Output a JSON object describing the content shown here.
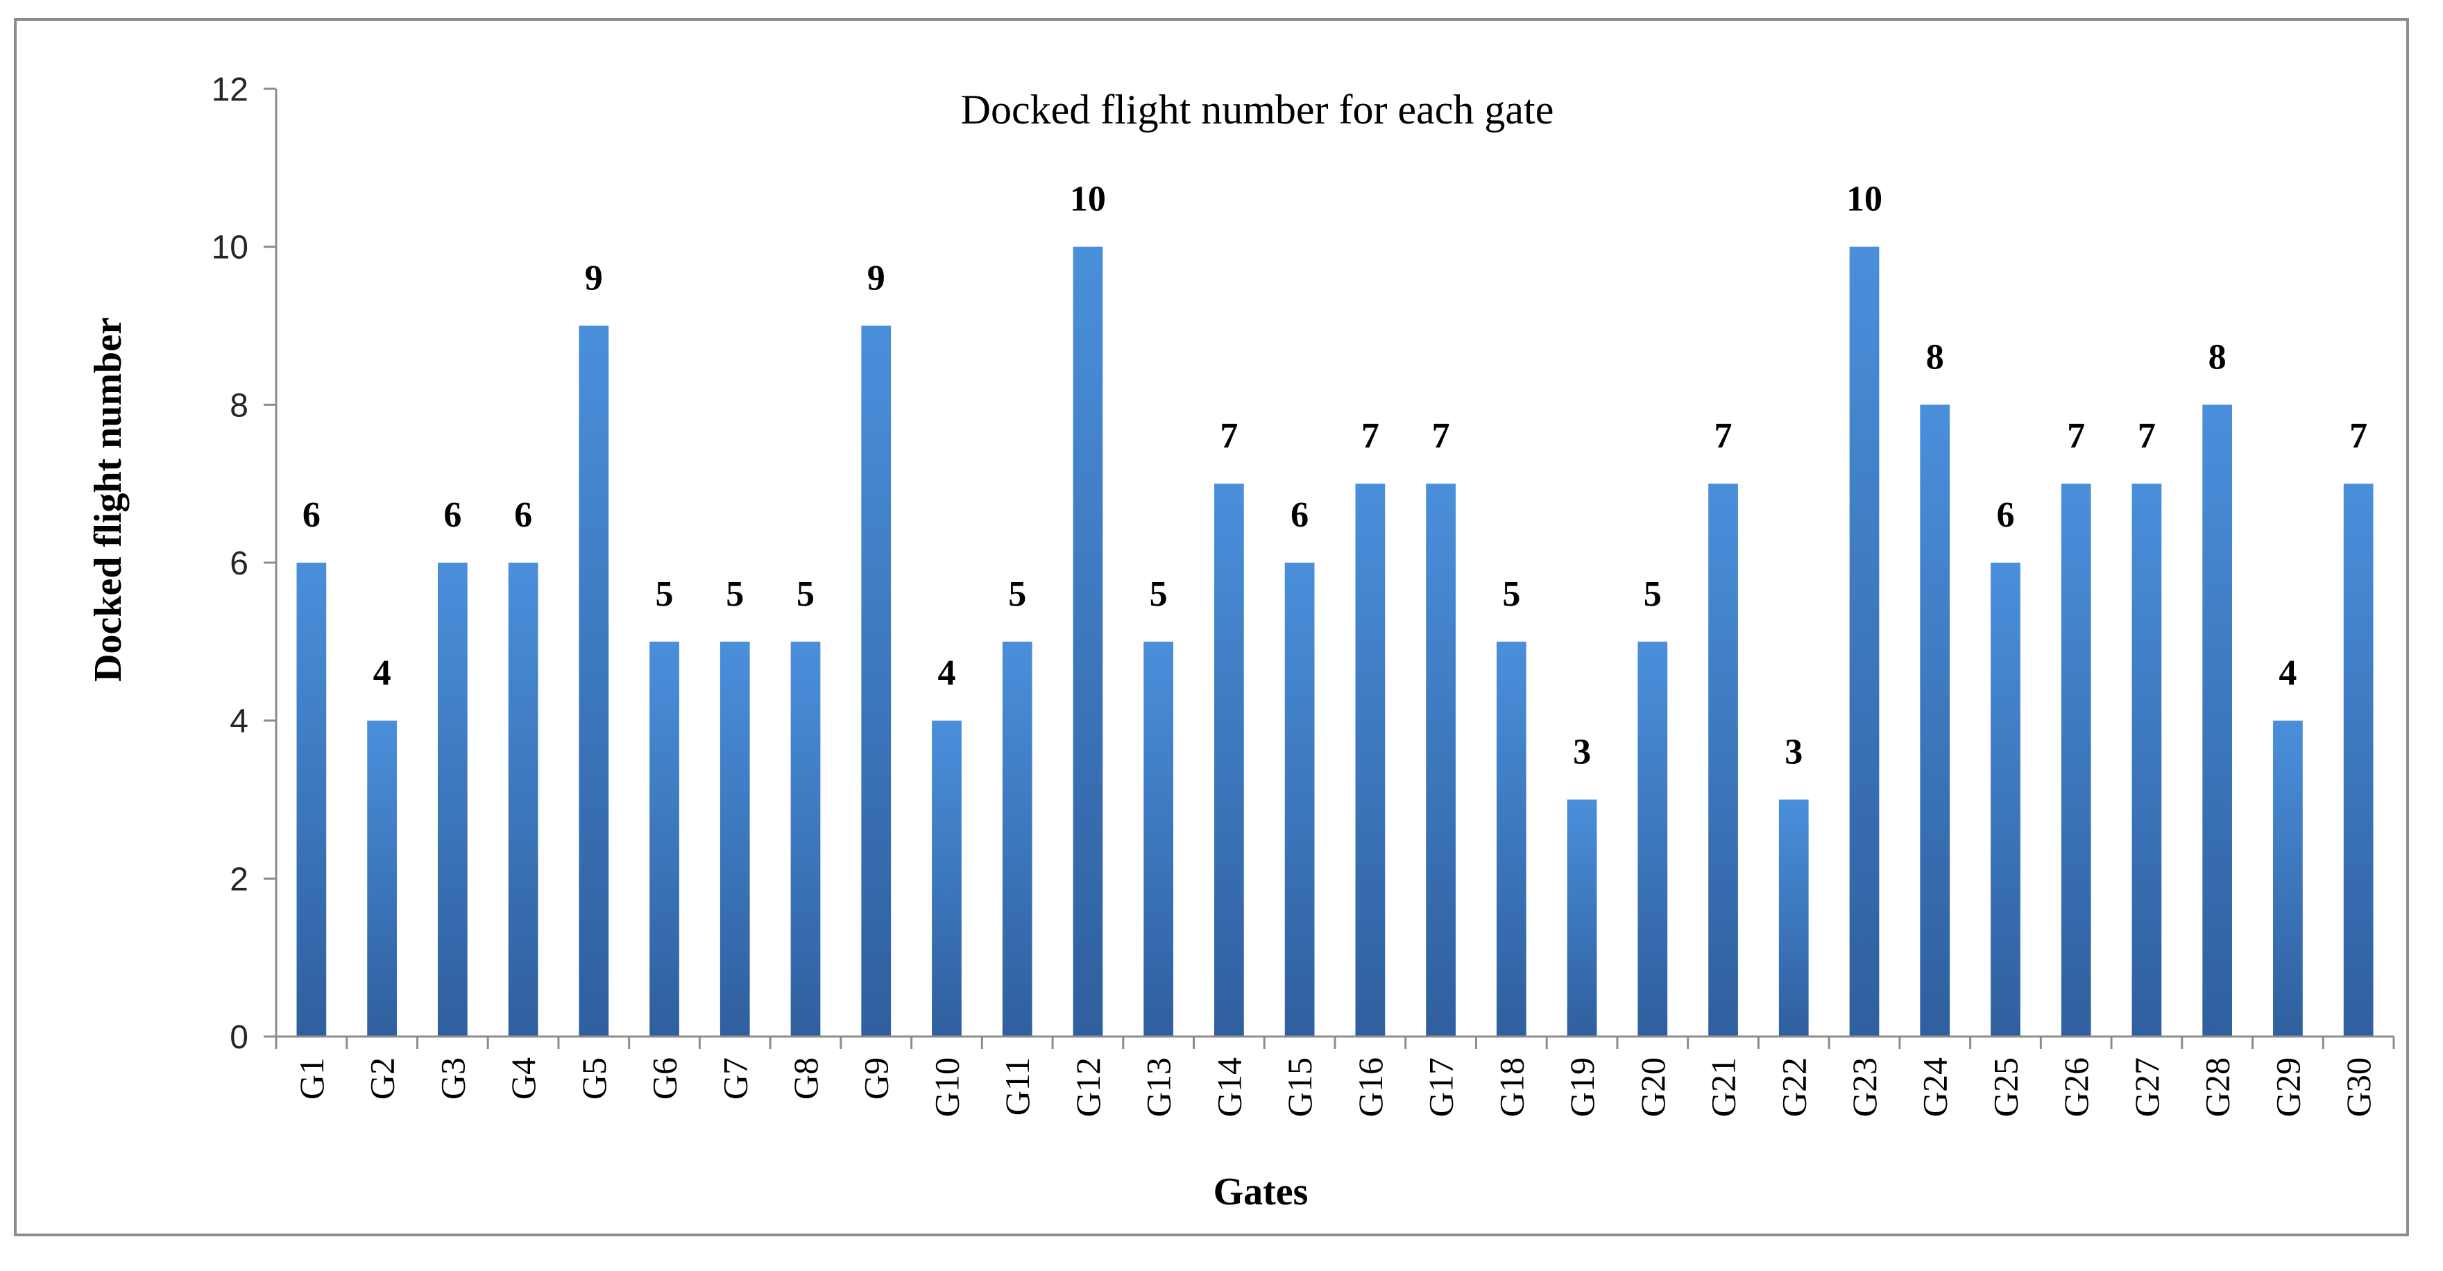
{
  "chart_data": {
    "type": "bar",
    "title": "Docked flight number for each gate",
    "xlabel": "Gates",
    "ylabel": "Docked flight number",
    "ylim": [
      0,
      12
    ],
    "yticks": [
      0,
      2,
      4,
      6,
      8,
      10,
      12
    ],
    "grid": false,
    "legend": "none",
    "bar_color_top": "#4a8fdb",
    "bar_color_bottom": "#2f5f9e",
    "categories": [
      "G1",
      "G2",
      "G3",
      "G4",
      "G5",
      "G6",
      "G7",
      "G8",
      "G9",
      "G10",
      "G11",
      "G12",
      "G13",
      "G14",
      "G15",
      "G16",
      "G17",
      "G18",
      "G19",
      "G20",
      "G21",
      "G22",
      "G23",
      "G24",
      "G25",
      "G26",
      "G27",
      "G28",
      "G29",
      "G30"
    ],
    "values": [
      6,
      4,
      6,
      6,
      9,
      5,
      5,
      5,
      9,
      4,
      5,
      10,
      5,
      7,
      6,
      7,
      7,
      5,
      3,
      5,
      7,
      3,
      10,
      8,
      6,
      7,
      7,
      8,
      4,
      7
    ]
  }
}
